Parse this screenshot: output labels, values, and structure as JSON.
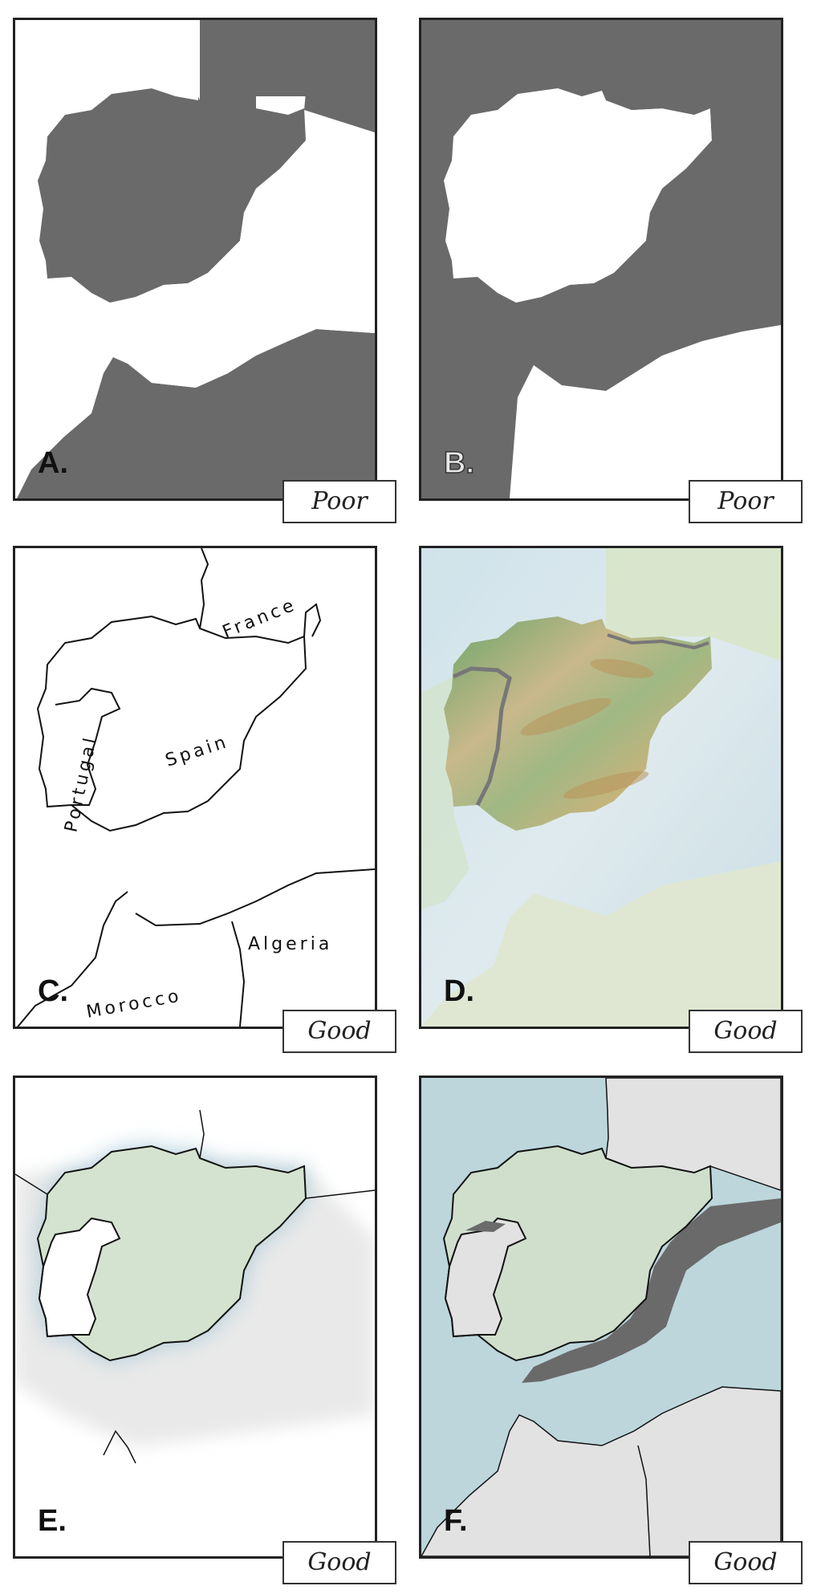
{
  "panels": [
    {
      "letter": "A.",
      "rating": "Poor"
    },
    {
      "letter": "B.",
      "rating": "Poor"
    },
    {
      "letter": "C.",
      "rating": "Good",
      "labels": {
        "france": "France",
        "spain": "Spain",
        "portugal": "Portugal",
        "algeria": "Algeria",
        "morocco": "Morocco"
      }
    },
    {
      "letter": "D.",
      "rating": "Good"
    },
    {
      "letter": "E.",
      "rating": "Good"
    },
    {
      "letter": "F.",
      "rating": "Good"
    }
  ],
  "colors": {
    "dark_fill": "#6a6a6a",
    "spain_green": "#cfdfcc",
    "sea_blue": "#bcd6dc",
    "land_gray": "#e2e2e2",
    "frame": "#222222"
  }
}
